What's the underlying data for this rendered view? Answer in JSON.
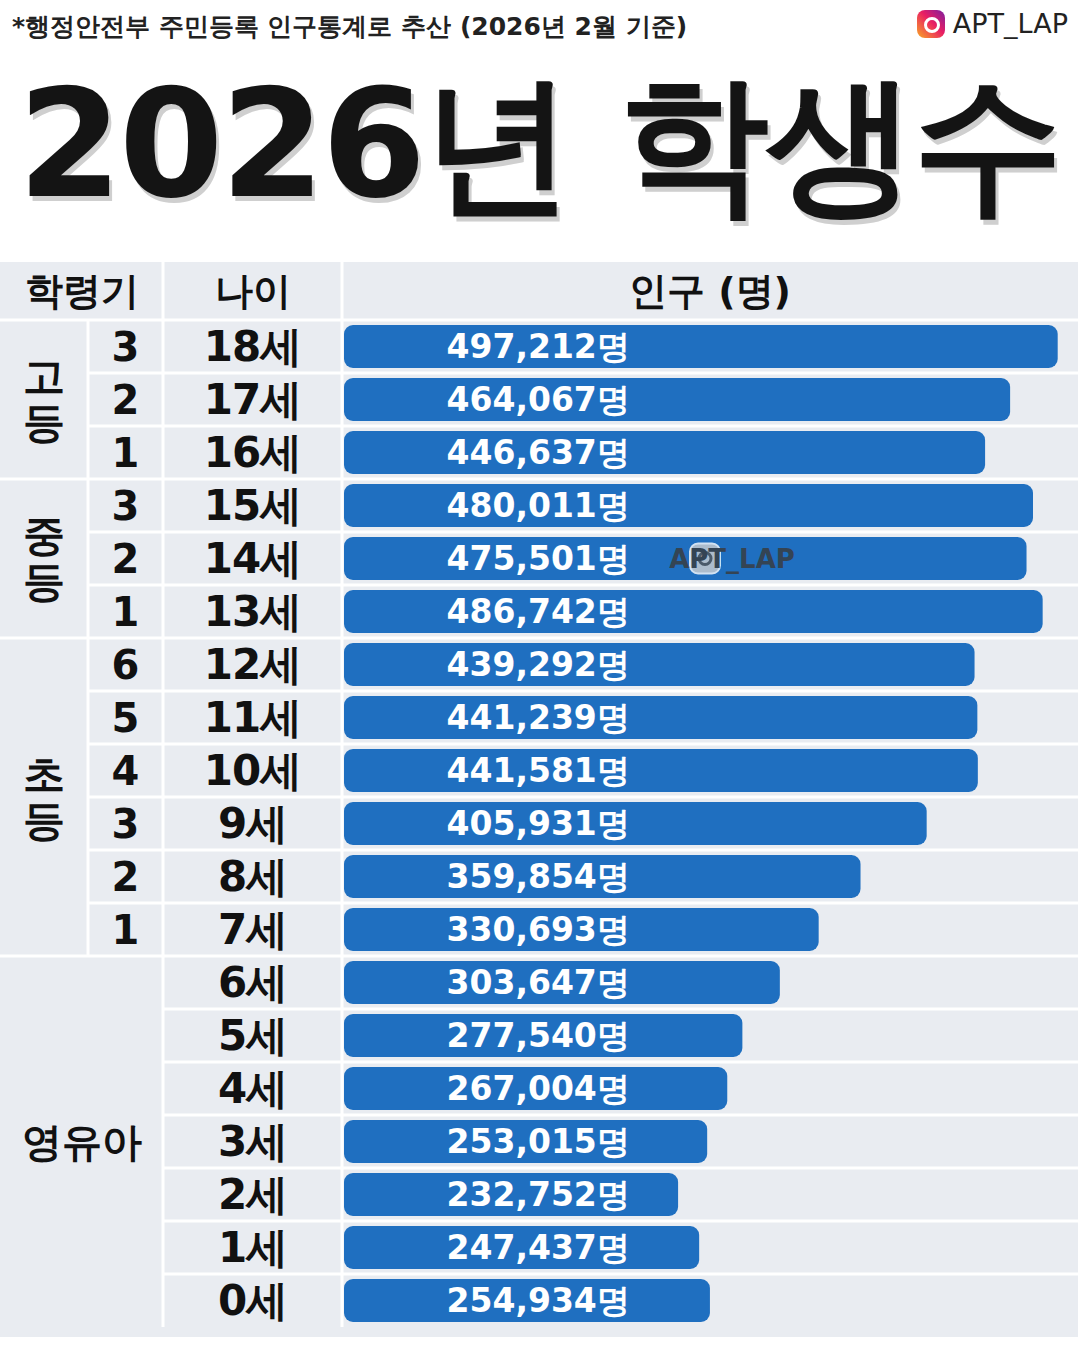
{
  "chart_data": {
    "type": "bar",
    "orientation": "horizontal",
    "title": "2026년 학생수",
    "subtitle": "*행정안전부 주민등록 인구통계로 추산 (2026년 2월 기준)",
    "watermark": "APT_LAP",
    "column_headers": [
      "학령기",
      "나이",
      "인구 (명)"
    ],
    "categories": [
      "18세",
      "17세",
      "16세",
      "15세",
      "14세",
      "13세",
      "12세",
      "11세",
      "10세",
      "9세",
      "8세",
      "7세",
      "6세",
      "5세",
      "4세",
      "3세",
      "2세",
      "1세",
      "0세"
    ],
    "stages": [
      "고등",
      "고등",
      "고등",
      "중등",
      "중등",
      "중등",
      "초등",
      "초등",
      "초등",
      "초등",
      "초등",
      "초등",
      "영유아",
      "영유아",
      "영유아",
      "영유아",
      "영유아",
      "영유아",
      "영유아"
    ],
    "grades": [
      "3",
      "2",
      "1",
      "3",
      "2",
      "1",
      "6",
      "5",
      "4",
      "3",
      "2",
      "1",
      null,
      null,
      null,
      null,
      null,
      null,
      null
    ],
    "values": [
      497212,
      464067,
      446637,
      480011,
      475501,
      486742,
      439292,
      441239,
      441581,
      405931,
      359854,
      330693,
      303647,
      277540,
      267004,
      253015,
      232752,
      247437,
      254934
    ],
    "value_labels": [
      "497,212명",
      "464,067명",
      "446,637명",
      "480,011명",
      "475,501명",
      "486,742명",
      "439,292명",
      "441,239명",
      "441,581명",
      "405,931명",
      "359,854명",
      "330,693명",
      "303,647명",
      "277,540명",
      "267,004명",
      "253,015명",
      "232,752명",
      "247,437명",
      "254,934명"
    ],
    "color": "#1f6fc0",
    "xlim": [
      0,
      503000
    ],
    "xticks": [],
    "tick_labels": false,
    "grid": false,
    "data_labels": true
  }
}
